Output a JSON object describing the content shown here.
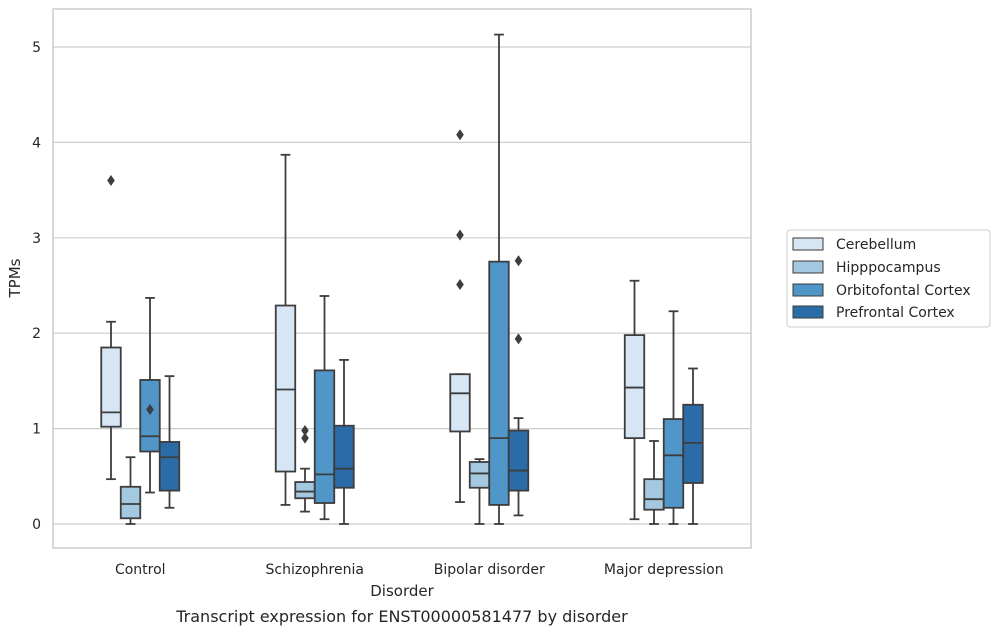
{
  "chart_data": {
    "type": "box",
    "title": "",
    "caption": "Transcript expression for ENST00000581477 by disorder",
    "xlabel": "Disorder",
    "ylabel": "TPMs",
    "categories": [
      "Control",
      "Schizophrenia",
      "Bipolar disorder",
      "Major depression"
    ],
    "ylim": [
      -0.25,
      5.4
    ],
    "yticks": [
      "0",
      "1",
      "2",
      "3",
      "4",
      "5"
    ],
    "ytick_values": [
      0,
      1,
      2,
      3,
      4,
      5
    ],
    "grid": "horizontal",
    "legend_position": "right",
    "series": [
      {
        "name": "Cerebellum",
        "color": "#d6e6f4",
        "boxes": [
          {
            "whislo": 0.47,
            "q1": 1.02,
            "med": 1.17,
            "q3": 1.85,
            "whishi": 2.12,
            "fliers": [
              3.6
            ]
          },
          {
            "whislo": 0.2,
            "q1": 0.55,
            "med": 1.41,
            "q3": 2.29,
            "whishi": 3.87,
            "fliers": []
          },
          {
            "whislo": 0.23,
            "q1": 0.97,
            "med": 1.37,
            "q3": 1.57,
            "whishi": 1.57,
            "fliers": [
              2.51,
              3.03,
              4.08
            ]
          },
          {
            "whislo": 0.05,
            "q1": 0.9,
            "med": 1.43,
            "q3": 1.98,
            "whishi": 2.55,
            "fliers": []
          }
        ]
      },
      {
        "name": "Hipppocampus",
        "color": "#a3c8e0",
        "boxes": [
          {
            "whislo": 0.0,
            "q1": 0.06,
            "med": 0.21,
            "q3": 0.39,
            "whishi": 0.7,
            "fliers": []
          },
          {
            "whislo": 0.13,
            "q1": 0.27,
            "med": 0.34,
            "q3": 0.44,
            "whishi": 0.58,
            "fliers": [
              0.9,
              0.98
            ]
          },
          {
            "whislo": 0.0,
            "q1": 0.38,
            "med": 0.53,
            "q3": 0.65,
            "whishi": 0.68,
            "fliers": []
          },
          {
            "whislo": 0.0,
            "q1": 0.15,
            "med": 0.26,
            "q3": 0.47,
            "whishi": 0.87,
            "fliers": []
          }
        ]
      },
      {
        "name": "Orbitofontal Cortex",
        "color": "#5096c8",
        "boxes": [
          {
            "whislo": 0.33,
            "q1": 0.76,
            "med": 0.92,
            "q3": 1.51,
            "whishi": 2.37,
            "fliers": [
              1.2
            ]
          },
          {
            "whislo": 0.05,
            "q1": 0.22,
            "med": 0.52,
            "q3": 1.61,
            "whishi": 2.39,
            "fliers": []
          },
          {
            "whislo": 0.0,
            "q1": 0.2,
            "med": 0.9,
            "q3": 2.75,
            "whishi": 5.13,
            "fliers": []
          },
          {
            "whislo": 0.0,
            "q1": 0.17,
            "med": 0.72,
            "q3": 1.1,
            "whishi": 2.23,
            "fliers": []
          }
        ]
      },
      {
        "name": "Prefrontal Cortex",
        "color": "#2b6ba8",
        "boxes": [
          {
            "whislo": 0.17,
            "q1": 0.35,
            "med": 0.7,
            "q3": 0.86,
            "whishi": 1.55,
            "fliers": []
          },
          {
            "whislo": 0.0,
            "q1": 0.38,
            "med": 0.58,
            "q3": 1.03,
            "whishi": 1.72,
            "fliers": []
          },
          {
            "whislo": 0.09,
            "q1": 0.35,
            "med": 0.56,
            "q3": 0.98,
            "whishi": 1.11,
            "fliers": [
              1.94,
              2.76
            ]
          },
          {
            "whislo": 0.0,
            "q1": 0.43,
            "med": 0.85,
            "q3": 1.25,
            "whishi": 1.63,
            "fliers": []
          }
        ]
      }
    ]
  }
}
